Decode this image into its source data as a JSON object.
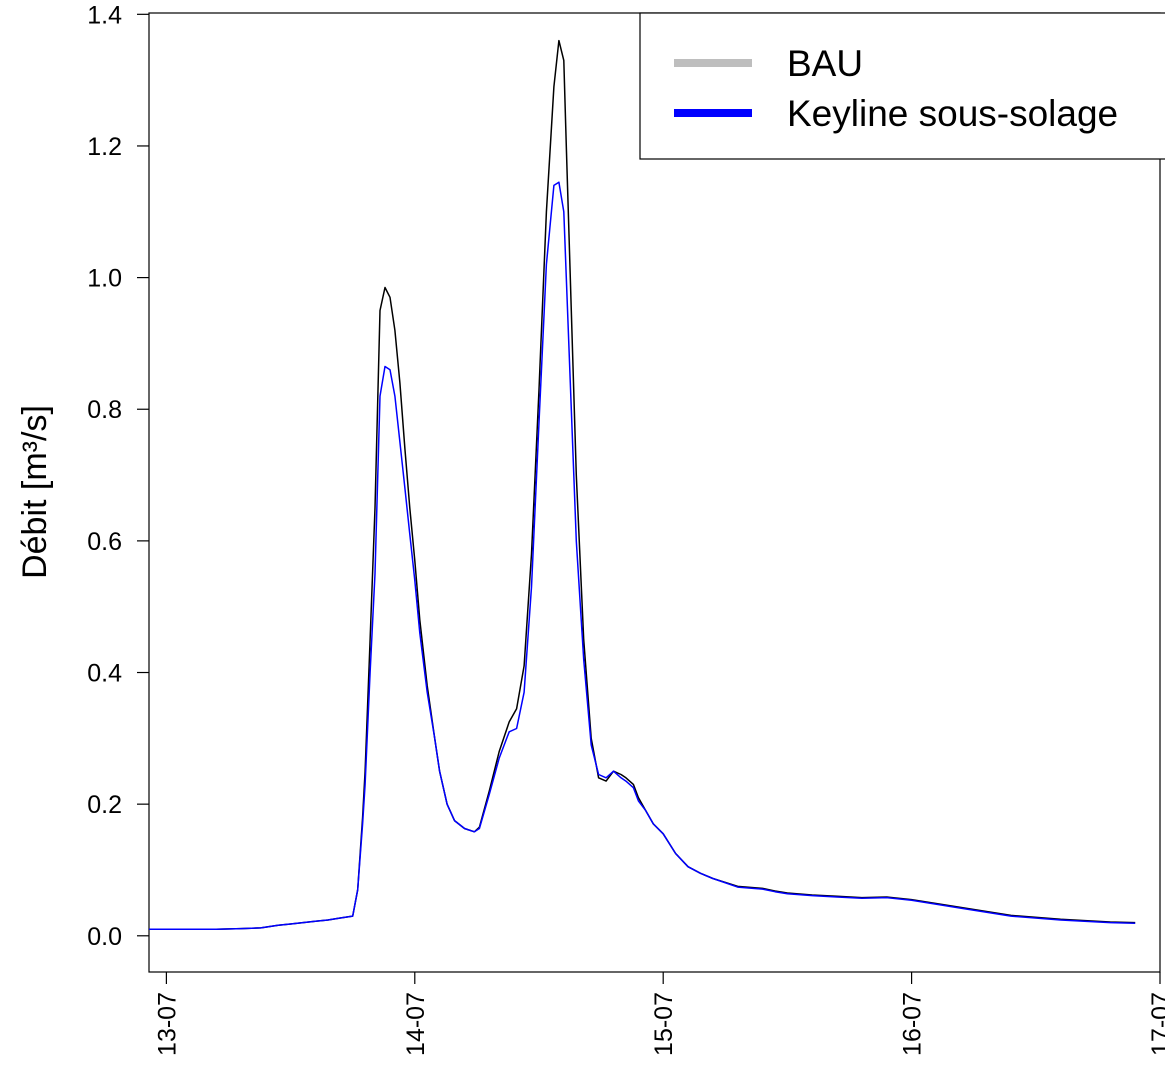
{
  "chart_data": {
    "type": "line",
    "title": "",
    "xlabel": "",
    "ylabel": "Débit [m³/s]",
    "x_unit": "day",
    "xlim": [
      12.93,
      17.0
    ],
    "ylim": [
      -0.055,
      1.402
    ],
    "x_ticks": [
      13,
      14,
      15,
      16,
      17
    ],
    "x_tick_labels": [
      "13-07",
      "14-07",
      "15-07",
      "16-07",
      "17-07"
    ],
    "y_ticks": [
      0.0,
      0.2,
      0.4,
      0.6,
      0.8,
      1.0,
      1.2,
      1.4
    ],
    "y_tick_labels": [
      "0.0",
      "0.2",
      "0.4",
      "0.6",
      "0.8",
      "1.0",
      "1.2",
      "1.4"
    ],
    "grid": false,
    "legend": {
      "position": "top-right",
      "entries": [
        {
          "label": "BAU",
          "color": "#bebebe"
        },
        {
          "label": "Keyline sous-solage",
          "color": "#0000ff"
        }
      ]
    },
    "series": [
      {
        "name": "BAU",
        "color": "#000000",
        "x": [
          12.93,
          13.1,
          13.2,
          13.3,
          13.38,
          13.45,
          13.5,
          13.55,
          13.6,
          13.65,
          13.7,
          13.75,
          13.77,
          13.79,
          13.8,
          13.82,
          13.84,
          13.86,
          13.88,
          13.9,
          13.92,
          13.94,
          13.96,
          13.98,
          14.0,
          14.02,
          14.05,
          14.08,
          14.1,
          14.13,
          14.16,
          14.2,
          14.24,
          14.26,
          14.3,
          14.34,
          14.38,
          14.41,
          14.44,
          14.47,
          14.5,
          14.53,
          14.56,
          14.58,
          14.6,
          14.61,
          14.63,
          14.65,
          14.68,
          14.71,
          14.74,
          14.77,
          14.8,
          14.83,
          14.85,
          14.88,
          14.9,
          14.93,
          14.96,
          15.0,
          15.05,
          15.1,
          15.15,
          15.2,
          15.3,
          15.4,
          15.45,
          15.5,
          15.6,
          15.7,
          15.8,
          15.9,
          16.0,
          16.2,
          16.4,
          16.6,
          16.8,
          16.9
        ],
        "y": [
          0.01,
          0.01,
          0.01,
          0.011,
          0.012,
          0.016,
          0.018,
          0.02,
          0.022,
          0.024,
          0.027,
          0.03,
          0.07,
          0.18,
          0.25,
          0.45,
          0.65,
          0.95,
          0.985,
          0.97,
          0.92,
          0.84,
          0.74,
          0.65,
          0.57,
          0.48,
          0.38,
          0.3,
          0.25,
          0.2,
          0.175,
          0.163,
          0.158,
          0.165,
          0.22,
          0.28,
          0.325,
          0.345,
          0.41,
          0.58,
          0.83,
          1.1,
          1.29,
          1.36,
          1.33,
          1.2,
          0.95,
          0.7,
          0.45,
          0.3,
          0.24,
          0.235,
          0.25,
          0.245,
          0.24,
          0.23,
          0.21,
          0.19,
          0.17,
          0.155,
          0.125,
          0.105,
          0.095,
          0.087,
          0.075,
          0.072,
          0.068,
          0.065,
          0.062,
          0.06,
          0.058,
          0.059,
          0.055,
          0.043,
          0.031,
          0.025,
          0.021,
          0.02
        ]
      },
      {
        "name": "Keyline sous-solage",
        "color": "#0000ff",
        "x": [
          12.93,
          13.1,
          13.2,
          13.3,
          13.38,
          13.45,
          13.5,
          13.55,
          13.6,
          13.65,
          13.7,
          13.75,
          13.77,
          13.79,
          13.8,
          13.82,
          13.84,
          13.86,
          13.88,
          13.9,
          13.92,
          13.94,
          13.96,
          13.98,
          14.0,
          14.02,
          14.05,
          14.08,
          14.1,
          14.13,
          14.16,
          14.2,
          14.24,
          14.26,
          14.3,
          14.34,
          14.38,
          14.41,
          14.44,
          14.47,
          14.5,
          14.53,
          14.56,
          14.58,
          14.6,
          14.61,
          14.63,
          14.65,
          14.68,
          14.71,
          14.74,
          14.77,
          14.8,
          14.83,
          14.85,
          14.88,
          14.9,
          14.93,
          14.96,
          15.0,
          15.05,
          15.1,
          15.15,
          15.2,
          15.3,
          15.4,
          15.45,
          15.5,
          15.6,
          15.7,
          15.8,
          15.9,
          16.0,
          16.2,
          16.4,
          16.6,
          16.8,
          16.9
        ],
        "y": [
          0.01,
          0.01,
          0.01,
          0.011,
          0.012,
          0.016,
          0.018,
          0.02,
          0.022,
          0.024,
          0.027,
          0.03,
          0.07,
          0.17,
          0.23,
          0.4,
          0.55,
          0.82,
          0.865,
          0.86,
          0.82,
          0.75,
          0.68,
          0.61,
          0.54,
          0.46,
          0.37,
          0.3,
          0.25,
          0.2,
          0.175,
          0.163,
          0.158,
          0.163,
          0.215,
          0.27,
          0.31,
          0.315,
          0.37,
          0.53,
          0.78,
          1.02,
          1.14,
          1.145,
          1.1,
          1.0,
          0.8,
          0.6,
          0.42,
          0.29,
          0.245,
          0.24,
          0.25,
          0.24,
          0.235,
          0.225,
          0.205,
          0.19,
          0.17,
          0.155,
          0.125,
          0.105,
          0.095,
          0.087,
          0.074,
          0.071,
          0.067,
          0.064,
          0.061,
          0.059,
          0.057,
          0.058,
          0.054,
          0.042,
          0.03,
          0.024,
          0.02,
          0.019
        ]
      }
    ]
  }
}
